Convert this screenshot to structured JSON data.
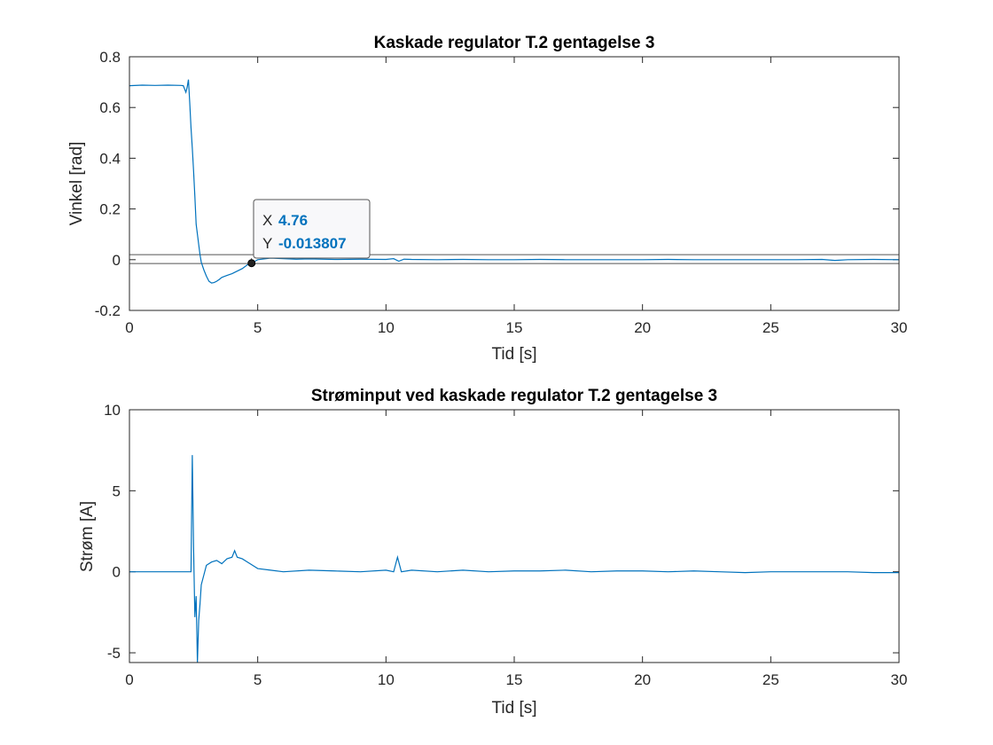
{
  "chart_data": [
    {
      "type": "line",
      "title": "Kaskade regulator T.2 gentagelse 3",
      "xlabel": "Tid [s]",
      "ylabel": "Vinkel [rad]",
      "xlim": [
        0,
        30
      ],
      "ylim": [
        -0.2,
        0.8
      ],
      "xticks": [
        0,
        5,
        10,
        15,
        20,
        25,
        30
      ],
      "yticks": [
        -0.2,
        0,
        0.2,
        0.4,
        0.6,
        0.8
      ],
      "xtick_labels": [
        "0",
        "5",
        "10",
        "15",
        "20",
        "25",
        "30"
      ],
      "ytick_labels": [
        "-0.2",
        "0",
        "0.2",
        "0.4",
        "0.6",
        "0.8"
      ],
      "grid": false,
      "color": "#0072BD",
      "reference_lines": [
        0.02,
        -0.015
      ],
      "reference_line_color": "#555555",
      "series": [
        {
          "name": "",
          "x": [
            0,
            0.5,
            1.0,
            1.5,
            2.0,
            2.1,
            2.2,
            2.25,
            2.3,
            2.35,
            2.4,
            2.45,
            2.5,
            2.55,
            2.6,
            2.65,
            2.7,
            2.75,
            2.8,
            2.9,
            3.0,
            3.1,
            3.2,
            3.3,
            3.4,
            3.5,
            3.6,
            3.8,
            4.0,
            4.2,
            4.4,
            4.6,
            4.76,
            5.0,
            5.5,
            6.0,
            6.5,
            7.0,
            8.0,
            9.0,
            10.0,
            10.3,
            10.5,
            10.7,
            11.0,
            12.0,
            13.0,
            14.0,
            15.0,
            16.0,
            17.0,
            18.0,
            19.0,
            20.0,
            21.0,
            22.0,
            23.0,
            24.0,
            25.0,
            26.0,
            27.0,
            27.5,
            28.0,
            29.0,
            30.0
          ],
          "y": [
            0.686,
            0.688,
            0.687,
            0.688,
            0.687,
            0.686,
            0.66,
            0.68,
            0.71,
            0.62,
            0.52,
            0.44,
            0.35,
            0.25,
            0.14,
            0.1,
            0.06,
            0.02,
            -0.01,
            -0.04,
            -0.065,
            -0.085,
            -0.092,
            -0.09,
            -0.085,
            -0.078,
            -0.07,
            -0.062,
            -0.055,
            -0.045,
            -0.035,
            -0.02,
            -0.013807,
            0.0,
            0.006,
            0.004,
            0.002,
            0.003,
            0.001,
            0.002,
            0.001,
            0.004,
            -0.006,
            0.002,
            0.001,
            0.0,
            0.001,
            0.0,
            0.0,
            0.001,
            0.0,
            0.0,
            0.0,
            0.0,
            0.001,
            0.0,
            0.0,
            0.0,
            0.0,
            0.0,
            0.001,
            -0.003,
            0.0,
            0.001,
            0.0
          ]
        }
      ],
      "datatip": {
        "x_key": "X",
        "y_key": "Y",
        "x_value": "4.76",
        "y_value": "-0.013807",
        "x": 4.76,
        "y": -0.013807,
        "value_color": "#0072BD"
      }
    },
    {
      "type": "line",
      "title": "Strøminput ved kaskade regulator T.2 gentagelse 3",
      "xlabel": "Tid [s]",
      "ylabel": "Strøm [A]",
      "xlim": [
        0,
        30
      ],
      "ylim": [
        -5.6,
        10
      ],
      "xticks": [
        0,
        5,
        10,
        15,
        20,
        25,
        30
      ],
      "yticks": [
        -5,
        0,
        5,
        10
      ],
      "xtick_labels": [
        "0",
        "5",
        "10",
        "15",
        "20",
        "25",
        "30"
      ],
      "ytick_labels": [
        "-5",
        "0",
        "5",
        "10"
      ],
      "grid": false,
      "color": "#0072BD",
      "series": [
        {
          "name": "",
          "x": [
            0,
            1.0,
            2.0,
            2.4,
            2.45,
            2.5,
            2.55,
            2.6,
            2.65,
            2.7,
            2.75,
            2.8,
            2.9,
            3.0,
            3.2,
            3.4,
            3.6,
            3.8,
            4.0,
            4.1,
            4.2,
            4.4,
            4.6,
            4.8,
            5.0,
            5.5,
            6.0,
            7.0,
            8.0,
            9.0,
            10.0,
            10.3,
            10.45,
            10.6,
            11.0,
            12.0,
            13.0,
            14.0,
            15.0,
            16.0,
            17.0,
            18.0,
            19.0,
            20.0,
            21.0,
            22.0,
            23.0,
            24.0,
            25.0,
            26.0,
            27.0,
            28.0,
            29.0,
            30.0
          ],
          "y": [
            0,
            0,
            0,
            0,
            7.2,
            1.5,
            -2.8,
            -1.5,
            -5.6,
            -3.0,
            -2.0,
            -0.8,
            -0.2,
            0.4,
            0.6,
            0.7,
            0.5,
            0.8,
            0.9,
            1.3,
            0.9,
            0.8,
            0.6,
            0.4,
            0.2,
            0.1,
            0.0,
            0.1,
            0.05,
            0.0,
            0.1,
            0.0,
            0.9,
            0.0,
            0.1,
            0.0,
            0.1,
            0.0,
            0.05,
            0.05,
            0.1,
            0.0,
            0.05,
            0.05,
            0.0,
            0.05,
            0.0,
            -0.05,
            0.0,
            0.0,
            0.0,
            0.0,
            -0.05,
            -0.05
          ]
        }
      ]
    }
  ]
}
